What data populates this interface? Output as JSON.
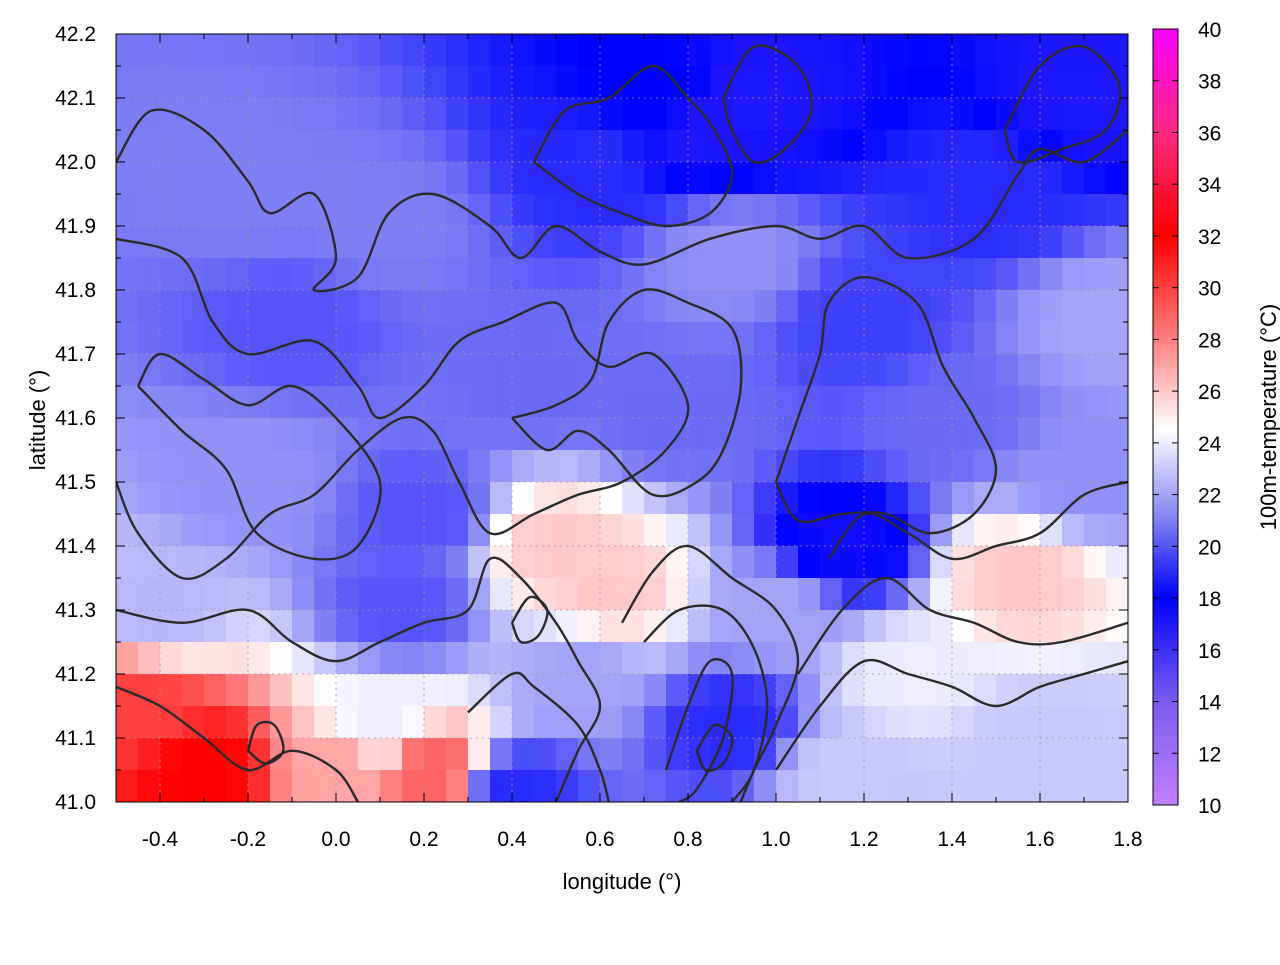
{
  "chart_data": {
    "type": "heatmap",
    "title": "",
    "xlabel": "longitude (°)",
    "ylabel": "latitude (°)",
    "xlim": [
      -0.5,
      1.8
    ],
    "ylim": [
      41.0,
      42.2
    ],
    "xticks": [
      "-0.4",
      "-0.2",
      "0.0",
      "0.2",
      "0.4",
      "0.6",
      "0.8",
      "1.0",
      "1.2",
      "1.4",
      "1.6",
      "1.8"
    ],
    "xtick_values": [
      -0.4,
      -0.2,
      0.0,
      0.2,
      0.4,
      0.6,
      0.8,
      1.0,
      1.2,
      1.4,
      1.6,
      1.8
    ],
    "yticks": [
      "41.0",
      "41.1",
      "41.2",
      "41.3",
      "41.4",
      "41.5",
      "41.6",
      "41.7",
      "41.8",
      "41.9",
      "42.0",
      "42.1",
      "42.2"
    ],
    "ytick_values": [
      41.0,
      41.1,
      41.2,
      41.3,
      41.4,
      41.5,
      41.6,
      41.7,
      41.8,
      41.9,
      42.0,
      42.1,
      42.2
    ],
    "grid": true,
    "colorbar": {
      "label": "100m-temperature (°C)",
      "range": [
        10,
        40
      ],
      "ticks": [
        "10",
        "12",
        "14",
        "16",
        "18",
        "20",
        "22",
        "24",
        "26",
        "28",
        "30",
        "32",
        "34",
        "36",
        "38",
        "40"
      ],
      "tick_values": [
        10,
        12,
        14,
        16,
        18,
        20,
        22,
        24,
        26,
        28,
        30,
        32,
        34,
        36,
        38,
        40
      ],
      "stops": [
        {
          "value": 10,
          "color": "#c080ff"
        },
        {
          "value": 14,
          "color": "#7a5cf0"
        },
        {
          "value": 18,
          "color": "#0000ff"
        },
        {
          "value": 21,
          "color": "#7f7ff5"
        },
        {
          "value": 24.5,
          "color": "#ffffff"
        },
        {
          "value": 28,
          "color": "#ff8080"
        },
        {
          "value": 32,
          "color": "#ff0000"
        },
        {
          "value": 36,
          "color": "#ff2a80"
        },
        {
          "value": 40,
          "color": "#ff00ff"
        }
      ]
    },
    "field_samples": [
      {
        "lon": -0.3,
        "lat": 41.05,
        "temp": 32
      },
      {
        "lon": -0.45,
        "lat": 41.15,
        "temp": 30
      },
      {
        "lon": 0.0,
        "lat": 41.05,
        "temp": 27
      },
      {
        "lon": 0.22,
        "lat": 41.05,
        "temp": 29
      },
      {
        "lon": 0.1,
        "lat": 41.12,
        "temp": 24
      },
      {
        "lon": -0.1,
        "lat": 41.75,
        "temp": 20
      },
      {
        "lon": 0.1,
        "lat": 41.9,
        "temp": 21
      },
      {
        "lon": -0.2,
        "lat": 41.5,
        "temp": 21.5
      },
      {
        "lon": 0.2,
        "lat": 41.45,
        "temp": 20
      },
      {
        "lon": 0.45,
        "lat": 41.65,
        "temp": 20.5
      },
      {
        "lon": 0.5,
        "lat": 41.4,
        "temp": 26
      },
      {
        "lon": 0.62,
        "lat": 41.33,
        "temp": 26
      },
      {
        "lon": 0.55,
        "lat": 41.2,
        "temp": 22
      },
      {
        "lon": 0.4,
        "lat": 41.02,
        "temp": 19
      },
      {
        "lon": 0.6,
        "lat": 42.0,
        "temp": 19
      },
      {
        "lon": 0.8,
        "lat": 42.05,
        "temp": 17
      },
      {
        "lon": 0.95,
        "lat": 42.1,
        "temp": 17
      },
      {
        "lon": 0.75,
        "lat": 42.1,
        "temp": 18
      },
      {
        "lon": 1.7,
        "lat": 42.1,
        "temp": 17
      },
      {
        "lon": 1.5,
        "lat": 41.95,
        "temp": 19
      },
      {
        "lon": 1.2,
        "lat": 41.75,
        "temp": 19.5
      },
      {
        "lon": 0.9,
        "lat": 41.85,
        "temp": 21.5
      },
      {
        "lon": 0.75,
        "lat": 41.6,
        "temp": 20.5
      },
      {
        "lon": 1.15,
        "lat": 41.4,
        "temp": 17.5
      },
      {
        "lon": 1.0,
        "lat": 41.3,
        "temp": 22
      },
      {
        "lon": 0.9,
        "lat": 41.12,
        "temp": 19
      },
      {
        "lon": 1.3,
        "lat": 41.2,
        "temp": 24
      },
      {
        "lon": 1.55,
        "lat": 41.35,
        "temp": 26
      },
      {
        "lon": 1.6,
        "lat": 41.1,
        "temp": 23
      },
      {
        "lon": 1.4,
        "lat": 41.6,
        "temp": 20.5
      },
      {
        "lon": 1.7,
        "lat": 41.5,
        "temp": 21.5
      },
      {
        "lon": 1.75,
        "lat": 41.75,
        "temp": 22
      },
      {
        "lon": 0.15,
        "lat": 41.3,
        "temp": 20
      },
      {
        "lon": -0.4,
        "lat": 41.3,
        "temp": 22.5
      },
      {
        "lon": -0.2,
        "lat": 41.95,
        "temp": 21
      },
      {
        "lon": 1.15,
        "lat": 41.05,
        "temp": 23
      }
    ],
    "contours": [
      [
        [
          -0.5,
          42.0
        ],
        [
          -0.42,
          42.08
        ],
        [
          -0.3,
          42.05
        ],
        [
          -0.2,
          41.97
        ],
        [
          -0.15,
          41.92
        ],
        [
          -0.05,
          41.95
        ],
        [
          0.0,
          41.85
        ],
        [
          -0.05,
          41.8
        ],
        [
          0.05,
          41.82
        ],
        [
          0.12,
          41.92
        ],
        [
          0.22,
          41.95
        ],
        [
          0.35,
          41.9
        ],
        [
          0.42,
          41.85
        ],
        [
          0.5,
          41.9
        ],
        [
          0.6,
          41.86
        ],
        [
          0.7,
          41.84
        ],
        [
          0.85,
          41.88
        ],
        [
          1.0,
          41.9
        ],
        [
          1.1,
          41.88
        ],
        [
          1.2,
          41.9
        ],
        [
          1.3,
          41.85
        ],
        [
          1.45,
          41.88
        ],
        [
          1.55,
          41.98
        ],
        [
          1.6,
          42.02
        ],
        [
          1.7,
          42.0
        ],
        [
          1.8,
          42.05
        ]
      ],
      [
        [
          -0.5,
          41.88
        ],
        [
          -0.35,
          41.85
        ],
        [
          -0.28,
          41.75
        ],
        [
          -0.2,
          41.7
        ],
        [
          -0.05,
          41.72
        ],
        [
          0.05,
          41.65
        ],
        [
          0.1,
          41.6
        ],
        [
          0.2,
          41.65
        ],
        [
          0.28,
          41.72
        ],
        [
          0.38,
          41.75
        ],
        [
          0.5,
          41.78
        ],
        [
          0.55,
          41.72
        ],
        [
          0.62,
          41.68
        ],
        [
          0.72,
          41.7
        ],
        [
          0.8,
          41.62
        ],
        [
          0.75,
          41.55
        ],
        [
          0.65,
          41.5
        ],
        [
          0.55,
          41.48
        ],
        [
          0.45,
          41.45
        ],
        [
          0.35,
          41.42
        ],
        [
          0.28,
          41.5
        ],
        [
          0.22,
          41.58
        ],
        [
          0.15,
          41.6
        ],
        [
          0.05,
          41.55
        ],
        [
          -0.05,
          41.48
        ],
        [
          -0.15,
          41.45
        ],
        [
          -0.25,
          41.38
        ],
        [
          -0.35,
          41.35
        ],
        [
          -0.45,
          41.42
        ],
        [
          -0.5,
          41.5
        ]
      ],
      [
        [
          -0.45,
          41.65
        ],
        [
          -0.35,
          41.58
        ],
        [
          -0.25,
          41.52
        ],
        [
          -0.18,
          41.42
        ],
        [
          -0.05,
          41.38
        ],
        [
          0.05,
          41.4
        ],
        [
          0.1,
          41.5
        ],
        [
          0.0,
          41.6
        ],
        [
          -0.1,
          41.65
        ],
        [
          -0.2,
          41.62
        ],
        [
          -0.3,
          41.66
        ],
        [
          -0.4,
          41.7
        ],
        [
          -0.45,
          41.65
        ]
      ],
      [
        [
          -0.5,
          41.3
        ],
        [
          -0.35,
          41.28
        ],
        [
          -0.2,
          41.3
        ],
        [
          -0.1,
          41.25
        ],
        [
          0.0,
          41.22
        ],
        [
          0.1,
          41.25
        ],
        [
          0.2,
          41.28
        ],
        [
          0.3,
          41.3
        ],
        [
          0.35,
          41.38
        ],
        [
          0.42,
          41.35
        ],
        [
          0.5,
          41.28
        ],
        [
          0.55,
          41.22
        ],
        [
          0.6,
          41.15
        ],
        [
          0.55,
          41.08
        ],
        [
          0.5,
          41.0
        ]
      ],
      [
        [
          -0.5,
          41.18
        ],
        [
          -0.4,
          41.15
        ],
        [
          -0.3,
          41.1
        ],
        [
          -0.2,
          41.05
        ],
        [
          -0.1,
          41.08
        ],
        [
          0.0,
          41.05
        ],
        [
          0.05,
          41.0
        ]
      ],
      [
        [
          0.3,
          41.14
        ],
        [
          0.4,
          41.2
        ],
        [
          0.45,
          41.18
        ],
        [
          0.55,
          41.12
        ],
        [
          0.6,
          41.05
        ],
        [
          0.62,
          41.0
        ]
      ],
      [
        [
          0.65,
          41.28
        ],
        [
          0.72,
          41.36
        ],
        [
          0.8,
          41.4
        ],
        [
          0.9,
          41.35
        ],
        [
          1.0,
          41.3
        ],
        [
          1.05,
          41.22
        ],
        [
          1.0,
          41.12
        ],
        [
          0.95,
          41.05
        ],
        [
          0.92,
          41.0
        ]
      ],
      [
        [
          0.7,
          41.25
        ],
        [
          0.78,
          41.3
        ],
        [
          0.88,
          41.3
        ],
        [
          0.95,
          41.24
        ],
        [
          0.98,
          41.15
        ],
        [
          0.95,
          41.05
        ],
        [
          0.9,
          41.0
        ]
      ],
      [
        [
          0.75,
          41.05
        ],
        [
          0.8,
          41.15
        ],
        [
          0.85,
          41.22
        ],
        [
          0.9,
          41.2
        ],
        [
          0.88,
          41.1
        ],
        [
          0.82,
          41.02
        ],
        [
          0.78,
          41.0
        ]
      ],
      [
        [
          1.12,
          41.38
        ],
        [
          1.2,
          41.45
        ],
        [
          1.3,
          41.42
        ],
        [
          1.4,
          41.38
        ],
        [
          1.5,
          41.4
        ],
        [
          1.6,
          41.42
        ],
        [
          1.7,
          41.48
        ],
        [
          1.8,
          41.5
        ]
      ],
      [
        [
          1.05,
          41.2
        ],
        [
          1.15,
          41.3
        ],
        [
          1.25,
          41.35
        ],
        [
          1.35,
          41.3
        ],
        [
          1.45,
          41.28
        ],
        [
          1.55,
          41.25
        ],
        [
          1.65,
          41.25
        ],
        [
          1.8,
          41.28
        ]
      ],
      [
        [
          1.0,
          41.05
        ],
        [
          1.1,
          41.15
        ],
        [
          1.2,
          41.22
        ],
        [
          1.3,
          41.2
        ],
        [
          1.4,
          41.18
        ],
        [
          1.5,
          41.15
        ],
        [
          1.6,
          41.18
        ],
        [
          1.7,
          41.2
        ],
        [
          1.8,
          41.22
        ]
      ],
      [
        [
          0.4,
          41.6
        ],
        [
          0.5,
          41.62
        ],
        [
          0.58,
          41.66
        ],
        [
          0.62,
          41.75
        ],
        [
          0.7,
          41.8
        ],
        [
          0.8,
          41.78
        ],
        [
          0.9,
          41.74
        ],
        [
          0.92,
          41.65
        ],
        [
          0.88,
          41.55
        ],
        [
          0.82,
          41.5
        ],
        [
          0.72,
          41.48
        ],
        [
          0.62,
          41.55
        ],
        [
          0.55,
          41.58
        ],
        [
          0.48,
          41.55
        ],
        [
          0.4,
          41.6
        ]
      ],
      [
        [
          1.0,
          41.5
        ],
        [
          1.05,
          41.6
        ],
        [
          1.1,
          41.7
        ],
        [
          1.12,
          41.78
        ],
        [
          1.2,
          41.82
        ],
        [
          1.32,
          41.78
        ],
        [
          1.38,
          41.68
        ],
        [
          1.45,
          41.6
        ],
        [
          1.5,
          41.52
        ],
        [
          1.45,
          41.45
        ],
        [
          1.35,
          41.42
        ],
        [
          1.25,
          41.45
        ],
        [
          1.15,
          41.45
        ],
        [
          1.05,
          41.44
        ],
        [
          1.0,
          41.5
        ]
      ],
      [
        [
          0.45,
          42.0
        ],
        [
          0.52,
          42.08
        ],
        [
          0.62,
          42.1
        ],
        [
          0.72,
          42.15
        ],
        [
          0.8,
          42.1
        ],
        [
          0.86,
          42.05
        ],
        [
          0.9,
          41.98
        ],
        [
          0.85,
          41.92
        ],
        [
          0.75,
          41.9
        ],
        [
          0.65,
          41.92
        ],
        [
          0.55,
          41.95
        ],
        [
          0.45,
          42.0
        ]
      ],
      [
        [
          0.88,
          42.1
        ],
        [
          0.95,
          42.18
        ],
        [
          1.05,
          42.15
        ],
        [
          1.08,
          42.08
        ],
        [
          1.02,
          42.02
        ],
        [
          0.95,
          42.0
        ],
        [
          0.9,
          42.05
        ],
        [
          0.88,
          42.1
        ]
      ],
      [
        [
          1.52,
          42.05
        ],
        [
          1.6,
          42.15
        ],
        [
          1.7,
          42.18
        ],
        [
          1.78,
          42.12
        ],
        [
          1.75,
          42.05
        ],
        [
          1.65,
          42.02
        ],
        [
          1.55,
          42.0
        ],
        [
          1.52,
          42.05
        ]
      ],
      [
        [
          -0.2,
          41.08
        ],
        [
          -0.18,
          41.12
        ],
        [
          -0.14,
          41.12
        ],
        [
          -0.12,
          41.08
        ],
        [
          -0.16,
          41.06
        ],
        [
          -0.2,
          41.08
        ]
      ],
      [
        [
          0.82,
          41.08
        ],
        [
          0.86,
          41.12
        ],
        [
          0.9,
          41.1
        ],
        [
          0.88,
          41.06
        ],
        [
          0.84,
          41.05
        ],
        [
          0.82,
          41.08
        ]
      ],
      [
        [
          0.4,
          41.28
        ],
        [
          0.44,
          41.32
        ],
        [
          0.48,
          41.3
        ],
        [
          0.46,
          41.26
        ],
        [
          0.42,
          41.25
        ],
        [
          0.4,
          41.28
        ]
      ]
    ]
  }
}
